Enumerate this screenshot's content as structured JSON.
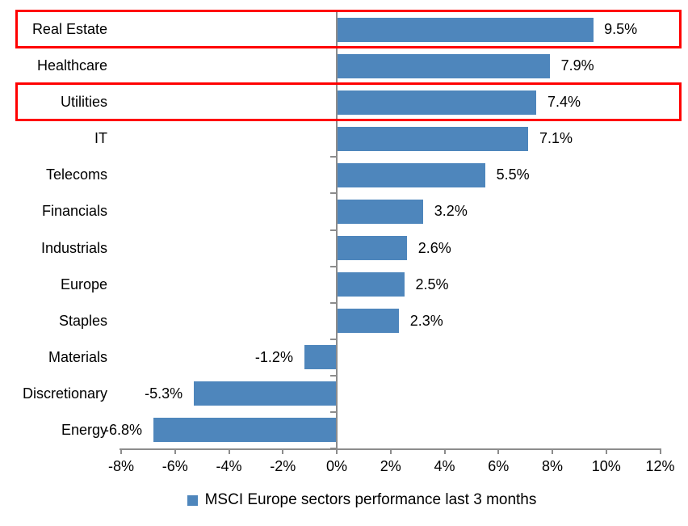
{
  "chart_data": {
    "type": "bar",
    "orientation": "horizontal",
    "title": "",
    "legend": "MSCI Europe sectors performance last 3 months",
    "legend_position": "bottom-center",
    "grid": false,
    "categories": [
      "Real Estate",
      "Healthcare",
      "Utilities",
      "IT",
      "Telecoms",
      "Financials",
      "Industrials",
      "Europe",
      "Staples",
      "Materials",
      "Discretionary",
      "Energy"
    ],
    "values": [
      9.5,
      7.9,
      7.4,
      7.1,
      5.5,
      3.2,
      2.6,
      2.5,
      2.3,
      -1.2,
      -5.3,
      -6.8
    ],
    "data_labels": [
      "9.5%",
      "7.9%",
      "7.4%",
      "7.1%",
      "5.5%",
      "3.2%",
      "2.6%",
      "2.5%",
      "2.3%",
      "-1.2%",
      "-5.3%",
      "-6.8%"
    ],
    "xlim": [
      -8,
      12
    ],
    "x_ticks": [
      {
        "value": -8,
        "label": "-8%"
      },
      {
        "value": -6,
        "label": "-6%"
      },
      {
        "value": -4,
        "label": "-4%"
      },
      {
        "value": -2,
        "label": "-2%"
      },
      {
        "value": 0,
        "label": "0%"
      },
      {
        "value": 2,
        "label": "2%"
      },
      {
        "value": 4,
        "label": "4%"
      },
      {
        "value": 6,
        "label": "6%"
      },
      {
        "value": 8,
        "label": "8%"
      },
      {
        "value": 10,
        "label": "10%"
      },
      {
        "value": 12,
        "label": "12%"
      }
    ],
    "highlighted_categories": [
      "Real Estate",
      "Utilities"
    ],
    "colors": {
      "bar": "#4E86BC",
      "axis": "#8C8C8C",
      "highlight_box": "#FF0000",
      "text": "#000000",
      "background": "#FFFFFF"
    }
  }
}
